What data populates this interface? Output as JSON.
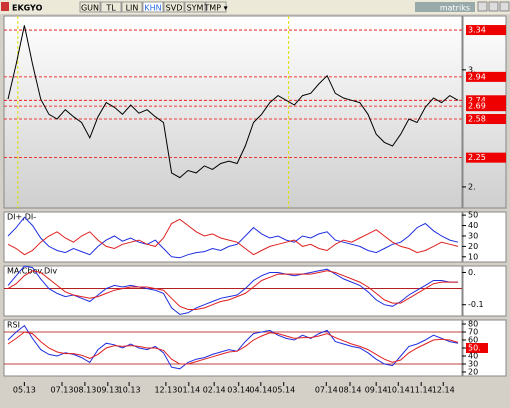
{
  "toolbar": {
    "symbol": "EKGYO",
    "buttons": [
      "GUN",
      "TL",
      "LIN",
      "KHN",
      "SVD",
      "SYM",
      "TMP ▾"
    ],
    "logo": "matriks"
  },
  "chart_data": [
    {
      "type": "line",
      "ylim": [
        1.82,
        3.46
      ],
      "yticks": [
        {
          "value": 3,
          "label": "3."
        },
        {
          "value": 2,
          "label": "2."
        }
      ],
      "xlim": [
        0,
        55
      ],
      "levels": [
        3.34,
        2.94,
        2.74,
        2.69,
        2.58,
        2.25
      ],
      "vlines": [
        1.2,
        34.3
      ],
      "series": [
        {
          "color": "#000000",
          "values": [
            2.75,
            3.05,
            3.38,
            3.05,
            2.75,
            2.62,
            2.58,
            2.66,
            2.6,
            2.55,
            2.42,
            2.6,
            2.72,
            2.68,
            2.62,
            2.7,
            2.63,
            2.66,
            2.6,
            2.55,
            2.12,
            2.08,
            2.14,
            2.12,
            2.18,
            2.15,
            2.2,
            2.22,
            2.2,
            2.35,
            2.55,
            2.62,
            2.72,
            2.78,
            2.74,
            2.7,
            2.78,
            2.8,
            2.88,
            2.95,
            2.8,
            2.76,
            2.74,
            2.72,
            2.62,
            2.45,
            2.38,
            2.35,
            2.45,
            2.58,
            2.55,
            2.68,
            2.76,
            2.72,
            2.78,
            2.74
          ]
        }
      ]
    },
    {
      "type": "line",
      "title": "DI+,DI-",
      "ylim": [
        5,
        53
      ],
      "yticks": [
        50,
        40,
        30,
        20,
        10
      ],
      "xlim": [
        0,
        55
      ],
      "series": [
        {
          "color": "#1f2fe0",
          "values": [
            30,
            38,
            48,
            40,
            28,
            20,
            16,
            14,
            18,
            15,
            12,
            20,
            26,
            30,
            25,
            28,
            24,
            22,
            26,
            18,
            10,
            9,
            12,
            14,
            15,
            18,
            16,
            20,
            22,
            30,
            38,
            32,
            28,
            30,
            26,
            24,
            30,
            28,
            32,
            34,
            26,
            24,
            22,
            20,
            16,
            14,
            18,
            22,
            24,
            30,
            38,
            42,
            35,
            30,
            26,
            24
          ]
        },
        {
          "color": "#e02020",
          "values": [
            22,
            18,
            12,
            16,
            24,
            30,
            34,
            28,
            24,
            30,
            34,
            26,
            20,
            18,
            22,
            24,
            26,
            22,
            20,
            28,
            42,
            46,
            40,
            34,
            30,
            32,
            28,
            26,
            24,
            18,
            12,
            16,
            20,
            22,
            24,
            26,
            20,
            22,
            18,
            16,
            22,
            26,
            24,
            28,
            32,
            36,
            30,
            24,
            20,
            18,
            14,
            16,
            20,
            24,
            22,
            20
          ]
        }
      ]
    },
    {
      "type": "line",
      "title": "MA.Cbev.Div",
      "ylim": [
        -0.17,
        0.14
      ],
      "yticks": [
        {
          "value": 0.1,
          "label": "0."
        },
        {
          "value": -0.1,
          "label": "-0.1"
        }
      ],
      "xlim": [
        0,
        55
      ],
      "levels": [
        0
      ],
      "series": [
        {
          "color": "#1f2fe0",
          "values": [
            0.02,
            0.08,
            0.14,
            0.13,
            0.06,
            0.0,
            -0.03,
            -0.05,
            -0.04,
            -0.06,
            -0.08,
            -0.04,
            0.0,
            0.02,
            0.01,
            0.02,
            0.01,
            0.0,
            -0.01,
            -0.03,
            -0.12,
            -0.16,
            -0.15,
            -0.12,
            -0.1,
            -0.08,
            -0.06,
            -0.05,
            -0.04,
            0.0,
            0.05,
            0.08,
            0.1,
            0.1,
            0.09,
            0.08,
            0.09,
            0.1,
            0.11,
            0.12,
            0.09,
            0.06,
            0.04,
            0.02,
            -0.02,
            -0.07,
            -0.1,
            -0.11,
            -0.08,
            -0.04,
            -0.01,
            0.02,
            0.05,
            0.05,
            0.04,
            0.04
          ]
        },
        {
          "color": "#e02020",
          "values": [
            0.0,
            0.03,
            0.08,
            0.11,
            0.1,
            0.06,
            0.02,
            -0.02,
            -0.04,
            -0.05,
            -0.06,
            -0.05,
            -0.03,
            -0.01,
            0.0,
            0.01,
            0.01,
            0.01,
            0.0,
            -0.01,
            -0.06,
            -0.11,
            -0.13,
            -0.13,
            -0.12,
            -0.1,
            -0.08,
            -0.07,
            -0.05,
            -0.03,
            0.01,
            0.05,
            0.07,
            0.09,
            0.09,
            0.09,
            0.09,
            0.09,
            0.1,
            0.11,
            0.1,
            0.08,
            0.06,
            0.04,
            0.01,
            -0.03,
            -0.07,
            -0.09,
            -0.09,
            -0.06,
            -0.03,
            0.0,
            0.03,
            0.04,
            0.04,
            0.04
          ]
        }
      ]
    },
    {
      "type": "line",
      "title": "RSI",
      "ylim": [
        15,
        85
      ],
      "yticks": [
        80,
        70,
        60,
        {
          "value": 50,
          "label": "50."
        },
        40,
        30,
        20
      ],
      "xlim": [
        0,
        55
      ],
      "levels": [
        70,
        30
      ],
      "xticks": [
        {
          "value": 2,
          "label": "05.13"
        },
        {
          "value": 6.6,
          "label": "07.13"
        },
        {
          "value": 9.4,
          "label": "08.13"
        },
        {
          "value": 12.2,
          "label": "09.13"
        },
        {
          "value": 14.8,
          "label": "10.13"
        },
        {
          "value": 19.3,
          "label": "12.13"
        },
        {
          "value": 22.1,
          "label": "01.14"
        },
        {
          "value": 25.2,
          "label": "02.14"
        },
        {
          "value": 28.2,
          "label": "03.14"
        },
        {
          "value": 30.9,
          "label": "04.14"
        },
        {
          "value": 33.7,
          "label": "05.14"
        },
        {
          "value": 38.9,
          "label": "07.14"
        },
        {
          "value": 41.8,
          "label": "08.14"
        },
        {
          "value": 45,
          "label": "09.14"
        },
        {
          "value": 47.7,
          "label": "10.14"
        },
        {
          "value": 50.5,
          "label": "11.14"
        },
        {
          "value": 53.2,
          "label": "12.14"
        }
      ],
      "series": [
        {
          "color": "#1f2fe0",
          "values": [
            60,
            70,
            78,
            62,
            48,
            42,
            40,
            44,
            42,
            38,
            32,
            48,
            56,
            54,
            50,
            55,
            50,
            48,
            52,
            44,
            26,
            24,
            32,
            36,
            38,
            42,
            45,
            48,
            46,
            58,
            68,
            70,
            72,
            66,
            62,
            60,
            66,
            62,
            68,
            72,
            58,
            55,
            52,
            50,
            44,
            36,
            30,
            28,
            40,
            52,
            55,
            60,
            66,
            62,
            58,
            56
          ]
        },
        {
          "color": "#e02020",
          "values": [
            55,
            62,
            70,
            68,
            58,
            50,
            45,
            43,
            43,
            41,
            37,
            42,
            50,
            53,
            52,
            53,
            52,
            50,
            50,
            47,
            36,
            30,
            30,
            33,
            36,
            39,
            42,
            45,
            46,
            52,
            60,
            65,
            69,
            68,
            65,
            62,
            63,
            63,
            65,
            68,
            63,
            59,
            55,
            52,
            48,
            42,
            36,
            32,
            35,
            44,
            50,
            55,
            60,
            61,
            60,
            57
          ]
        }
      ]
    }
  ]
}
